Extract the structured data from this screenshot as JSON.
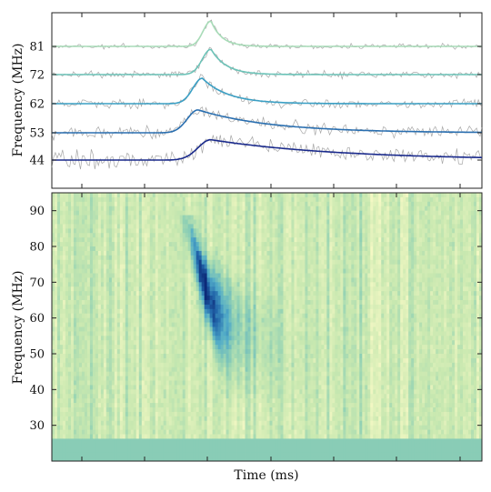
{
  "chart_data": [
    {
      "type": "line",
      "panel": "pulse-profiles",
      "ylabel": "Frequency (MHz)",
      "xlabel": "",
      "y_ticks": [
        44,
        53,
        62,
        72,
        81
      ],
      "grid": false,
      "series": [
        {
          "band": "81",
          "color": "#a8dcb8",
          "peak_time": 0.37,
          "amplitude": 1.0,
          "rise": 0.018,
          "decay": 0.025
        },
        {
          "band": "72",
          "color": "#6cc3b8",
          "peak_time": 0.37,
          "amplitude": 1.0,
          "rise": 0.02,
          "decay": 0.035
        },
        {
          "band": "62",
          "color": "#3a9fc4",
          "peak_time": 0.35,
          "amplitude": 1.0,
          "rise": 0.022,
          "decay": 0.06
        },
        {
          "band": "53",
          "color": "#2a6fb0",
          "peak_time": 0.34,
          "amplitude": 0.9,
          "rise": 0.025,
          "decay": 0.17
        },
        {
          "band": "44",
          "color": "#1a2a8c",
          "peak_time": 0.37,
          "amplitude": 0.8,
          "rise": 0.03,
          "decay": 0.3
        }
      ]
    },
    {
      "type": "heatmap",
      "panel": "dynamic-spectrum",
      "xlabel": "Time (ms)",
      "ylabel": "Frequency (MHz)",
      "ylim": [
        20,
        95
      ],
      "y_ticks": [
        30,
        40,
        50,
        60,
        70,
        80,
        90
      ],
      "colormap": [
        "#f4f8c4",
        "#c8e8b0",
        "#8fd0b4",
        "#50aac8",
        "#2266aa",
        "#0c2a78"
      ],
      "burst": {
        "time": 0.36,
        "freq_low": 45,
        "freq_high": 85,
        "peak_freq": 68
      },
      "masked_band": [
        20,
        26
      ]
    }
  ]
}
